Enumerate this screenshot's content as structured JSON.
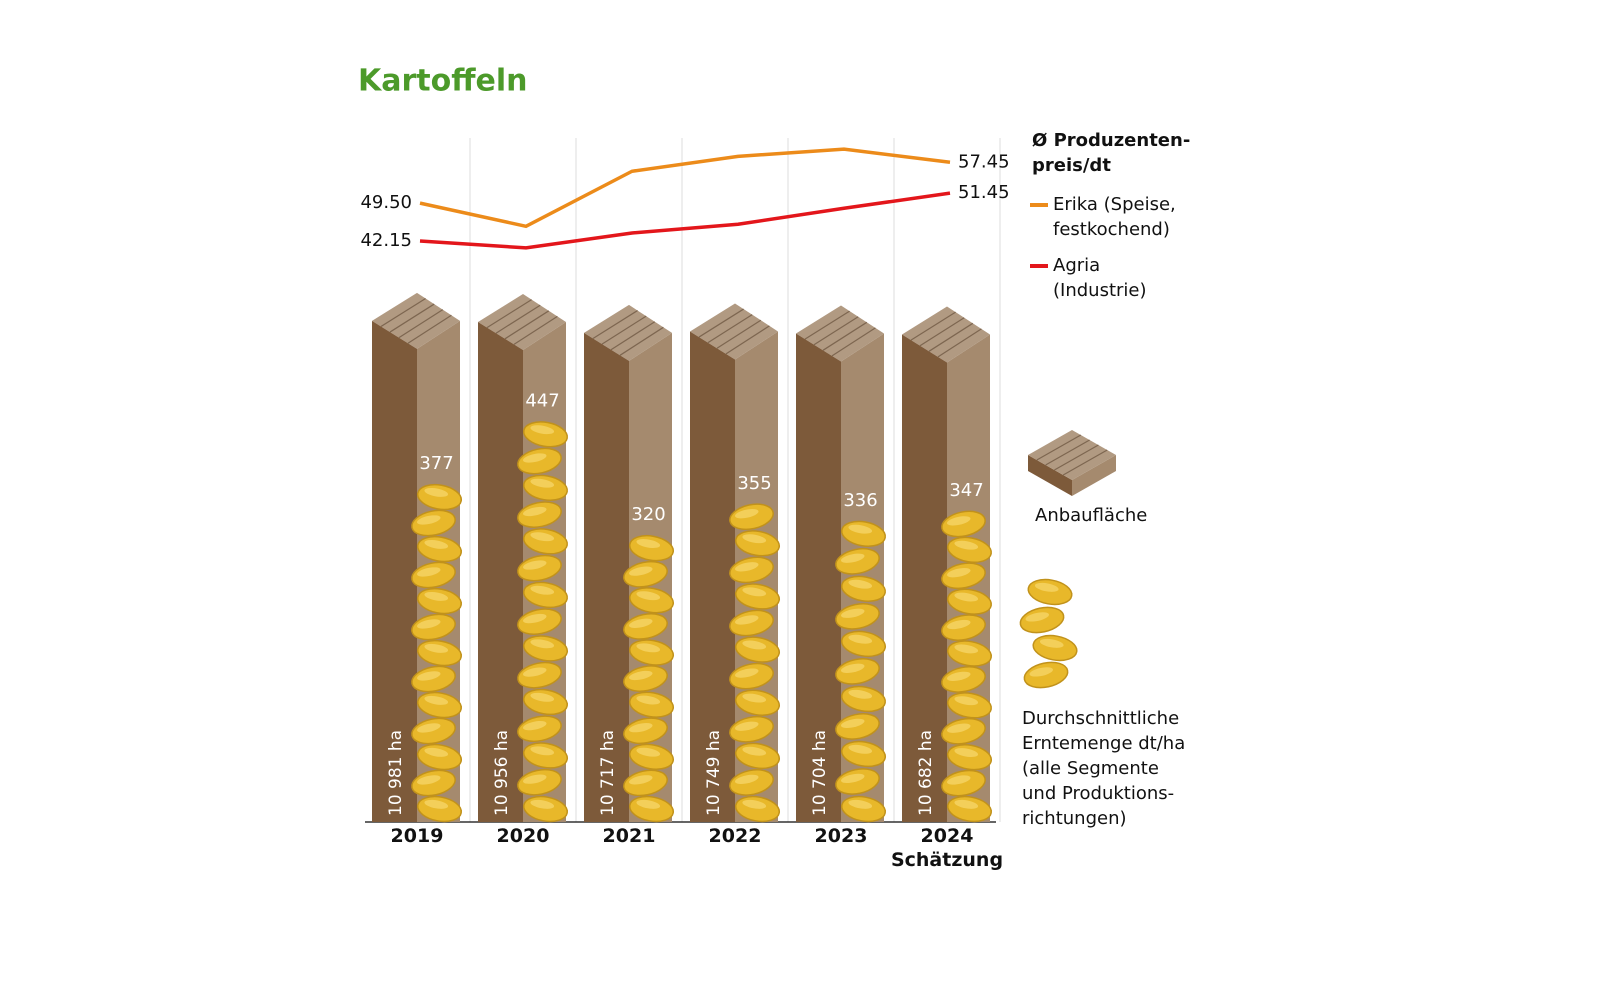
{
  "chart_data": {
    "type": "pillar",
    "title": "Kartoffeln",
    "categories": [
      "2019",
      "2020",
      "2021",
      "2022",
      "2023",
      "2024\nSchätzung"
    ],
    "area": {
      "name": "Anbaufläche",
      "color": "#7d5a3a",
      "side_color": "#a58a6e",
      "values": [
        10981,
        10956,
        10717,
        10749,
        10704,
        10682
      ],
      "value_labels": [
        "10 981 ha",
        "10 956 ha",
        "10 717 ha",
        "10 749 ha",
        "10 704 ha",
        "10 682 ha"
      ],
      "ylim": [
        0,
        11000
      ]
    },
    "yield": {
      "name": "Durchschnittliche\nErntemenge dt/ha\n(alle Segmente\nund Produktions-\nrichtungen)",
      "color": "#e8b82a",
      "values": [
        377,
        447,
        320,
        355,
        336,
        347
      ],
      "ylim": [
        0,
        560
      ]
    },
    "price": {
      "title": "Ø Produzenten-\npreis/dt",
      "ylim": [
        40,
        61
      ],
      "series": [
        {
          "name": "Erika (Speise,\nfestkochend)",
          "color": "#ec8b1a",
          "values": [
            49.5,
            45.0,
            55.7,
            58.6,
            60.0,
            57.45
          ],
          "value_labels": [
            "49.50",
            null,
            null,
            null,
            null,
            "57.45"
          ]
        },
        {
          "name": "Agria\n(Industrie)",
          "color": "#e3161b",
          "values": [
            42.15,
            40.8,
            43.7,
            45.4,
            48.5,
            51.45
          ],
          "value_labels": [
            "42.15",
            null,
            null,
            null,
            null,
            "51.45"
          ]
        }
      ]
    }
  }
}
